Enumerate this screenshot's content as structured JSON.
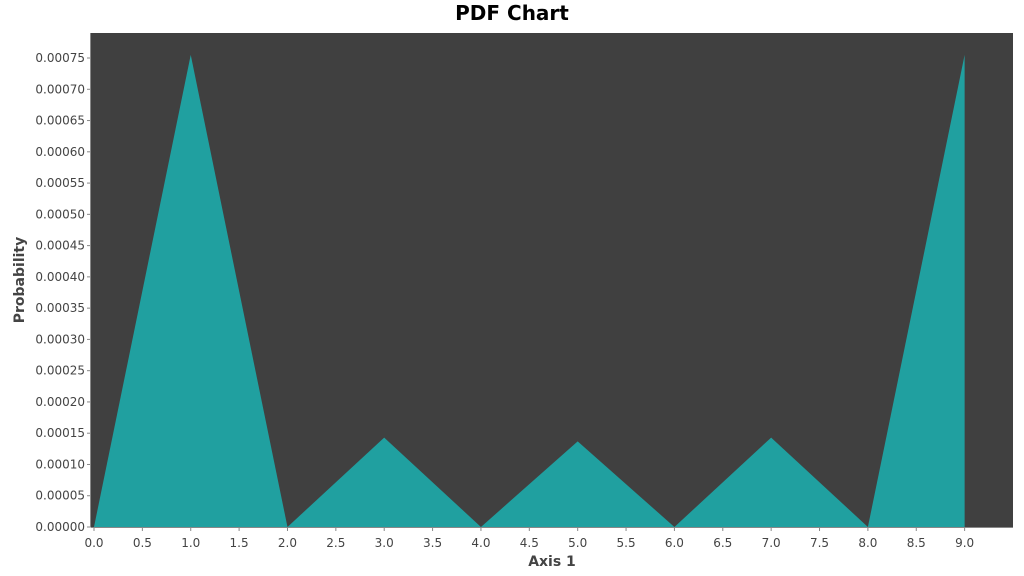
{
  "chart_data": {
    "type": "area",
    "title": "PDF Chart",
    "xlabel": "Axis 1",
    "ylabel": "Probability",
    "xlim": [
      0.0,
      9.5
    ],
    "ylim": [
      0.0,
      0.00079
    ],
    "xticks": [
      "0.0",
      "0.5",
      "1.0",
      "1.5",
      "2.0",
      "2.5",
      "3.0",
      "3.5",
      "4.0",
      "4.5",
      "5.0",
      "5.5",
      "6.0",
      "6.5",
      "7.0",
      "7.5",
      "8.0",
      "8.5",
      "9.0"
    ],
    "yticks": [
      "0.00000",
      "0.00005",
      "0.00010",
      "0.00015",
      "0.00020",
      "0.00025",
      "0.00030",
      "0.00035",
      "0.00040",
      "0.00045",
      "0.00050",
      "0.00055",
      "0.00060",
      "0.00065",
      "0.00070",
      "0.00075"
    ],
    "grid": false,
    "series": [
      {
        "x": [
          0,
          1,
          2,
          3,
          4,
          5,
          6,
          7,
          8,
          9
        ],
        "y": [
          0.0,
          0.000755,
          0.0,
          0.000143,
          0.0,
          0.000137,
          0.0,
          0.000143,
          0.0,
          0.000755
        ]
      }
    ],
    "colors": {
      "fill": "#20a0a0",
      "plot_background": "#404040",
      "axis": "#888888"
    }
  }
}
